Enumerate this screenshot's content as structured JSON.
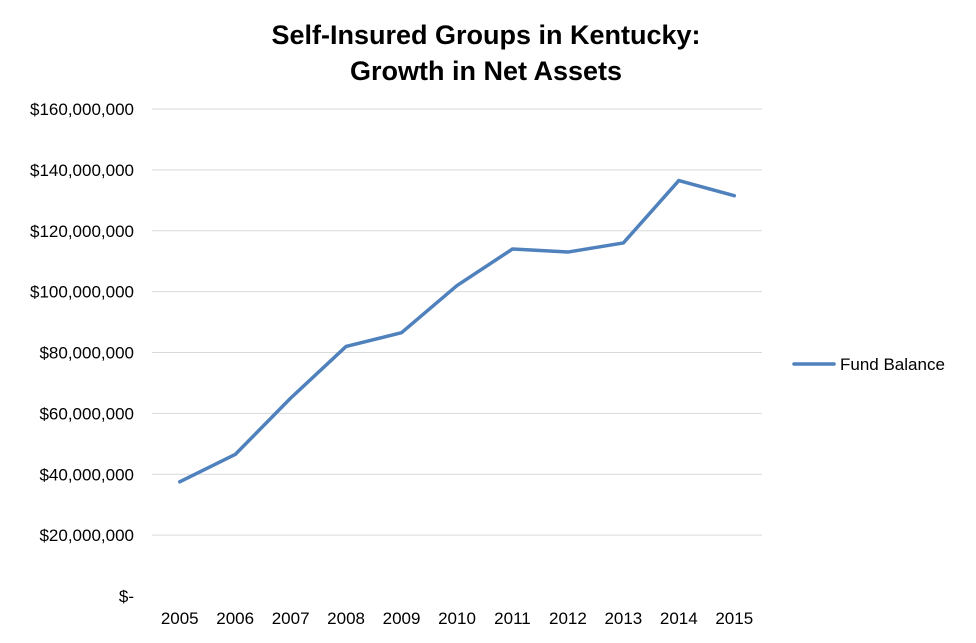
{
  "chart_data": {
    "type": "line",
    "title": [
      "Self-Insured Groups in Kentucky:",
      "Growth in Net Assets"
    ],
    "categories": [
      "2005",
      "2006",
      "2007",
      "2008",
      "2009",
      "2010",
      "2011",
      "2012",
      "2013",
      "2014",
      "2015"
    ],
    "series": [
      {
        "name": "Fund Balance",
        "color": "#4f81bd",
        "values": [
          37500000,
          46500000,
          65000000,
          82000000,
          86500000,
          102000000,
          114000000,
          113000000,
          116000000,
          136500000,
          131500000
        ]
      }
    ],
    "ylim": [
      0,
      160000000
    ],
    "yticks": [
      0,
      20000000,
      40000000,
      60000000,
      80000000,
      100000000,
      120000000,
      140000000,
      160000000
    ],
    "ytick_labels": [
      "$-",
      "$20,000,000",
      "$40,000,000",
      "$60,000,000",
      "$80,000,000",
      "$100,000,000",
      "$120,000,000",
      "$140,000,000",
      "$160,000,000"
    ],
    "grid": true,
    "legend_position": "right"
  }
}
